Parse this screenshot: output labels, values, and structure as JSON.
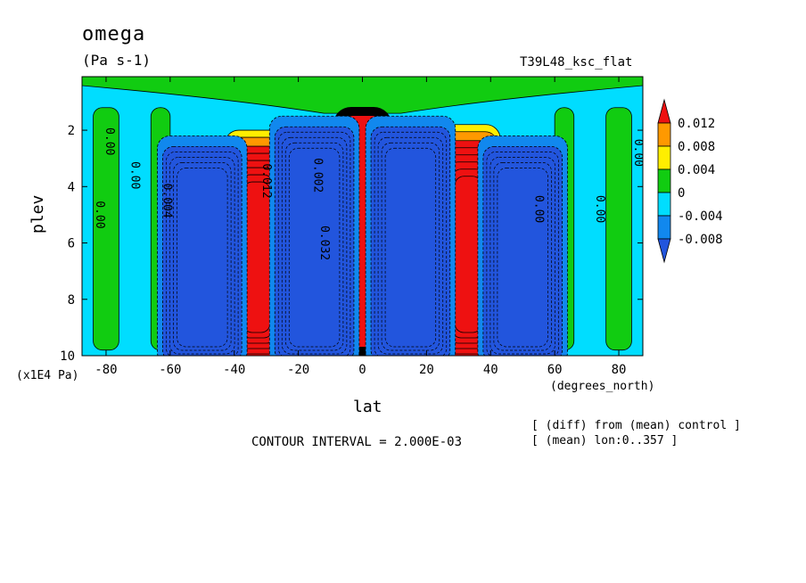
{
  "chart_data": {
    "type": "heatmap",
    "title": "omega",
    "subtitle": "(Pa s-1)",
    "run_label": "T39L48_ksc_flat",
    "xlabel": "lat",
    "xunits": "(degrees_north)",
    "ylabel": "plev",
    "yunits": "(x1E4 Pa)",
    "x_ticks": [
      "-80",
      "-60",
      "-40",
      "-20",
      "0",
      "20",
      "40",
      "60",
      "80"
    ],
    "x_tick_values": [
      -80,
      -60,
      -40,
      -20,
      0,
      20,
      40,
      60,
      80
    ],
    "y_ticks": [
      "2",
      "4",
      "6",
      "8",
      "10"
    ],
    "y_tick_values": [
      2,
      4,
      6,
      8,
      10
    ],
    "xlim": [
      -87.5,
      87.5
    ],
    "ylim": [
      10,
      0.1
    ],
    "y_reversed": true,
    "colorbar": {
      "labels": [
        "0.012",
        "0.008",
        "0.004",
        "0",
        "-0.004",
        "-0.008"
      ],
      "levels": [
        0.012,
        0.008,
        0.004,
        0,
        -0.004,
        -0.008
      ],
      "colors": [
        "#ee1111",
        "#ff9900",
        "#ffee00",
        "#11cc11",
        "#00ddff",
        "#1188ee",
        "#2255dd"
      ]
    },
    "contour_interval_text": "CONTOUR INTERVAL = 2.000E-03",
    "contour_labels": [
      "0.00",
      "0.00",
      "0.00",
      "0.004",
      "0.012",
      "0.002",
      "0.032",
      "0.00",
      "0.00",
      "0.00"
    ],
    "features": [
      {
        "lat": 0,
        "plev_top": 1.3,
        "plev_bottom": 10,
        "value": 0.04
      },
      {
        "lat": -33,
        "plev_top": 2.0,
        "plev_bottom": 10,
        "value": 0.016
      },
      {
        "lat": 33,
        "plev_top": 1.8,
        "plev_bottom": 10,
        "value": 0.016
      },
      {
        "lat": -50,
        "plev_top": 2.2,
        "plev_bottom": 10,
        "value": -0.01
      },
      {
        "lat": -15,
        "plev_top": 1.5,
        "plev_bottom": 10,
        "value": -0.012
      },
      {
        "lat": 15,
        "plev_top": 1.5,
        "plev_bottom": 10,
        "value": -0.012
      },
      {
        "lat": 50,
        "plev_top": 2.2,
        "plev_bottom": 10,
        "value": -0.01
      }
    ]
  },
  "notes": [
    "[ (diff) from (mean) control ]",
    "[ (mean) lon:0..357 ]"
  ]
}
